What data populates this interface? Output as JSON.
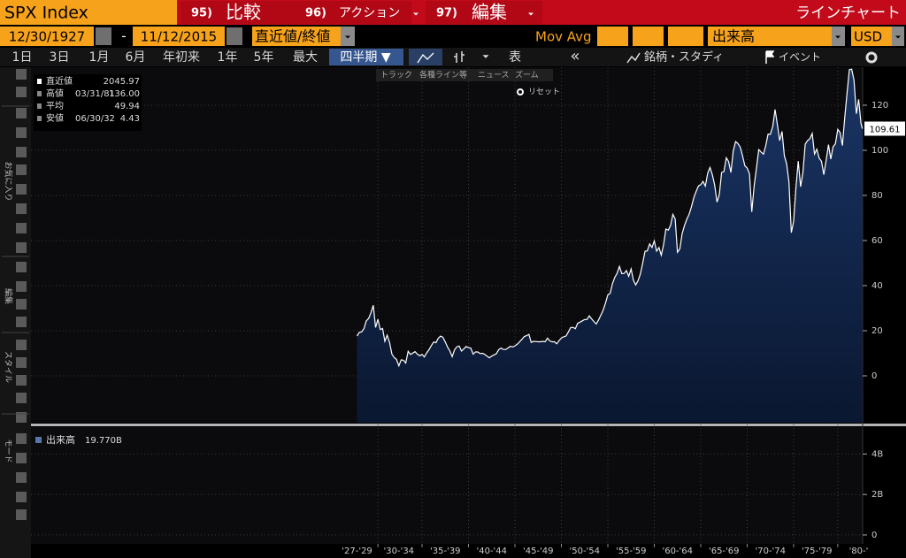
{
  "header": {
    "ticker": "SPX Index",
    "menu": [
      {
        "num": "95)",
        "label": "比較"
      },
      {
        "num": "96)",
        "label": "アクション"
      },
      {
        "num": "97)",
        "label": "編集"
      }
    ],
    "chart_type": "ラインチャート"
  },
  "controls": {
    "start_date": "12/30/1927",
    "separator": "-",
    "end_date": "11/12/2015",
    "price_field": "直近値/終値",
    "mov_avg": "Mov Avg",
    "volume": "出来高",
    "currency": "USD"
  },
  "periods": [
    "1日",
    "3日",
    "1月",
    "6月",
    "年初来",
    "1年",
    "5年",
    "最大",
    "四半期 ▼"
  ],
  "toolbar": {
    "table": "表",
    "back": "«",
    "studies": "銘柄・スタディ",
    "events": "イベント"
  },
  "chart_tools": [
    "トラック",
    "各種ライン等",
    "ニュース",
    "ズーム",
    "リセット"
  ],
  "sidebar": [
    "お気に入り",
    "編集",
    "スタイル",
    "モード"
  ],
  "chart_data": [
    {
      "type": "area",
      "stats": [
        {
          "name": "直近値",
          "value": "2045.97"
        },
        {
          "name": "高値",
          "date": "03/31/81",
          "value": "136.00"
        },
        {
          "name": "平均",
          "value": "49.94"
        },
        {
          "name": "安値",
          "date": "06/30/32",
          "value": "4.43"
        }
      ],
      "xlim": [
        1892.9,
        1982.43
      ],
      "xticks": [
        {
          "value": 1928,
          "label": "'27-'29"
        },
        {
          "value": 1932.5,
          "label": "'30-'34"
        },
        {
          "value": 1937.5,
          "label": "'35-'39"
        },
        {
          "value": 1942.5,
          "label": "'40-'44"
        },
        {
          "value": 1947.5,
          "label": "'45-'49"
        },
        {
          "value": 1952.5,
          "label": "'50-'54"
        },
        {
          "value": 1957.5,
          "label": "'55-'59"
        },
        {
          "value": 1962.5,
          "label": "'60-'64"
        },
        {
          "value": 1967.5,
          "label": "'65-'69"
        },
        {
          "value": 1972.5,
          "label": "'70-'74"
        },
        {
          "value": 1977.5,
          "label": "'75-'79"
        },
        {
          "value": 1982,
          "label": "'80-'"
        }
      ],
      "ylim": [
        -20.78,
        136.86
      ],
      "yticks": [
        0,
        20,
        40,
        60,
        80,
        100,
        120
      ],
      "grid": true,
      "x": [
        1928,
        1928.25,
        1928.5,
        1928.75,
        1929,
        1929.25,
        1929.5,
        1929.75,
        1930,
        1930.25,
        1930.5,
        1930.75,
        1931,
        1931.25,
        1931.5,
        1931.75,
        1932,
        1932.25,
        1932.5,
        1932.75,
        1933,
        1933.25,
        1933.5,
        1933.75,
        1934,
        1934.25,
        1934.5,
        1934.75,
        1935,
        1935.25,
        1935.5,
        1935.75,
        1936,
        1936.25,
        1936.5,
        1936.75,
        1937,
        1937.25,
        1937.5,
        1937.75,
        1938,
        1938.25,
        1938.5,
        1938.75,
        1939,
        1939.25,
        1939.5,
        1939.75,
        1940,
        1940.25,
        1940.5,
        1940.75,
        1941,
        1941.25,
        1941.5,
        1941.75,
        1942,
        1942.25,
        1942.5,
        1942.75,
        1943,
        1943.25,
        1943.5,
        1943.75,
        1944,
        1944.25,
        1944.5,
        1944.75,
        1945,
        1945.25,
        1945.5,
        1945.75,
        1946,
        1946.25,
        1946.5,
        1946.75,
        1947,
        1947.25,
        1947.5,
        1947.75,
        1948,
        1948.25,
        1948.5,
        1948.75,
        1949,
        1949.25,
        1949.5,
        1949.75,
        1950,
        1950.25,
        1950.5,
        1950.75,
        1951,
        1951.25,
        1951.5,
        1951.75,
        1952,
        1952.25,
        1952.5,
        1952.75,
        1953,
        1953.25,
        1953.5,
        1953.75,
        1954,
        1954.25,
        1954.5,
        1954.75,
        1955,
        1955.25,
        1955.5,
        1955.75,
        1956,
        1956.25,
        1956.5,
        1956.75,
        1957,
        1957.25,
        1957.5,
        1957.75,
        1958,
        1958.25,
        1958.5,
        1958.75,
        1959,
        1959.25,
        1959.5,
        1959.75,
        1960,
        1960.25,
        1960.5,
        1960.75,
        1961,
        1961.25,
        1961.5,
        1961.75,
        1962,
        1962.25,
        1962.5,
        1962.75,
        1963,
        1963.25,
        1963.5,
        1963.75,
        1964,
        1964.25,
        1964.5,
        1964.75,
        1965,
        1965.25,
        1965.5,
        1965.75,
        1966,
        1966.25,
        1966.5,
        1966.75,
        1967,
        1967.25,
        1967.5,
        1967.75,
        1968,
        1968.25,
        1968.5,
        1968.75,
        1969,
        1969.25,
        1969.5,
        1969.75,
        1970,
        1970.25,
        1970.5,
        1970.75,
        1971,
        1971.25,
        1971.5,
        1971.75,
        1972,
        1972.25,
        1972.5,
        1972.75,
        1973,
        1973.25,
        1973.5,
        1973.75,
        1974,
        1974.25,
        1974.5,
        1974.75,
        1975,
        1975.25,
        1975.5,
        1975.75,
        1976,
        1976.25,
        1976.5,
        1976.75,
        1977,
        1977.25,
        1977.5,
        1977.75,
        1978,
        1978.25,
        1978.5,
        1978.75,
        1979,
        1979.25,
        1979.5,
        1979.75,
        1980,
        1980.25,
        1980.5,
        1980.75,
        1981,
        1981.25,
        1981.5,
        1981.75,
        1982,
        1982.25,
        1982.4
      ],
      "series": [
        {
          "color": "#ffffff",
          "fill": "#14294f",
          "values": [
            17.66,
            19.3,
            19.5,
            21.0,
            24.4,
            25.4,
            28.0,
            31.3,
            21.45,
            25.1,
            20.5,
            21.0,
            15.3,
            18.0,
            14.8,
            9.7,
            8.1,
            7.3,
            4.43,
            7.1,
            6.9,
            5.7,
            10.9,
            9.5,
            10.1,
            10.7,
            9.6,
            8.9,
            9.5,
            8.4,
            10.2,
            11.6,
            13.4,
            15.0,
            14.7,
            16.7,
            17.6,
            17.1,
            15.0,
            12.7,
            11.0,
            8.5,
            11.6,
            12.9,
            13.2,
            11.0,
            12.0,
            13.0,
            12.5,
            12.3,
            9.6,
            10.6,
            10.6,
            9.9,
            10.0,
            9.5,
            8.7,
            8.0,
            8.8,
            9.3,
            9.8,
            11.6,
            12.3,
            11.7,
            11.7,
            12.3,
            13.1,
            12.8,
            13.3,
            14.0,
            15.1,
            16.2,
            17.4,
            17.8,
            18.4,
            14.8,
            15.3,
            15.2,
            15.1,
            15.1,
            15.3,
            15.1,
            16.7,
            15.5,
            15.1,
            15.1,
            14.2,
            15.6,
            16.8,
            17.3,
            17.7,
            19.5,
            21.4,
            21.5,
            20.9,
            23.3,
            23.8,
            24.4,
            25.0,
            25.0,
            26.6,
            25.3,
            24.1,
            23.0,
            24.8,
            26.9,
            29.2,
            32.3,
            35.9,
            36.6,
            41.0,
            43.7,
            45.5,
            48.5,
            45.3,
            45.4,
            46.7,
            44.1,
            47.4,
            42.4,
            40.3,
            42.1,
            45.2,
            50.0,
            55.2,
            55.4,
            58.5,
            56.9,
            59.9,
            55.3,
            56.9,
            53.5,
            58.1,
            65.1,
            64.6,
            66.7,
            71.6,
            69.6,
            54.8,
            56.3,
            63.1,
            66.6,
            69.4,
            71.7,
            75.0,
            78.9,
            81.7,
            84.2,
            84.8,
            86.2,
            84.1,
            89.9,
            92.4,
            89.2,
            84.7,
            77.0,
            80.3,
            90.2,
            90.6,
            96.7,
            95.0,
            90.2,
            99.6,
            103.9,
            103.0,
            101.5,
            97.7,
            93.1,
            92.1,
            89.6,
            72.7,
            84.3,
            92.2,
            100.3,
            99.2,
            98.3,
            102.1,
            107.2,
            107.1,
            110.6,
            118.1,
            111.5,
            104.3,
            108.4,
            97.6,
            94.0,
            86.0,
            63.5,
            68.6,
            83.4,
            95.2,
            83.9,
            90.2,
            102.8,
            104.3,
            105.2,
            107.5,
            98.4,
            100.5,
            96.5,
            95.1,
            89.2,
            95.5,
            102.5,
            96.1,
            101.6,
            102.9,
            109.3,
            107.9,
            102.1,
            114.2,
            125.5,
            135.8,
            136.0,
            131.2,
            116.2,
            122.6,
            111.96,
            109.61
          ]
        }
      ]
    },
    {
      "type": "bar",
      "legend": {
        "name": "出来高",
        "value": "19.770B"
      },
      "ylim": [
        -0.44,
        5.33
      ],
      "yticks": [
        0,
        {
          "value": 2,
          "label": "2B"
        },
        {
          "value": 4,
          "label": "4B"
        }
      ],
      "grid": true
    }
  ]
}
